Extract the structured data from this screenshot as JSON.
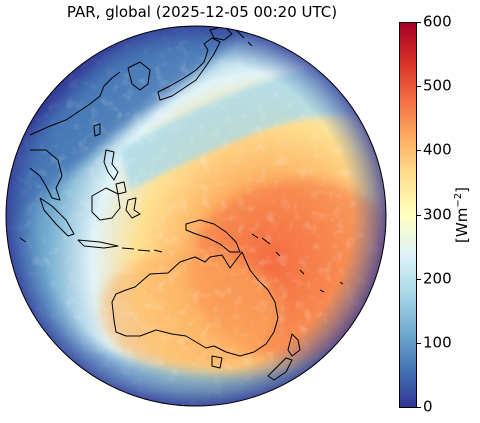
{
  "figure": {
    "title": "PAR, global (2025-12-05 00:20 UTC)"
  },
  "colorbar": {
    "label": "[Wm",
    "label_exponent": "−2",
    "label_close": "]",
    "ticks": [
      "0",
      "100",
      "200",
      "300",
      "400",
      "500",
      "600"
    ],
    "range": [
      0,
      600
    ],
    "colormap": "RdYlBu_r",
    "colors": [
      "#313695",
      "#4575b4",
      "#74add1",
      "#abd9e9",
      "#e0f3f8",
      "#ffffbf",
      "#fee090",
      "#fdae61",
      "#f46d43",
      "#d73027",
      "#a50026"
    ]
  },
  "map": {
    "projection": "geostationary full disk",
    "field": "PAR",
    "coastline_color": "#000000",
    "regions": [
      "East Asia",
      "Japan",
      "Maritime Continent",
      "Australia",
      "New Zealand",
      "Western Pacific"
    ]
  }
}
